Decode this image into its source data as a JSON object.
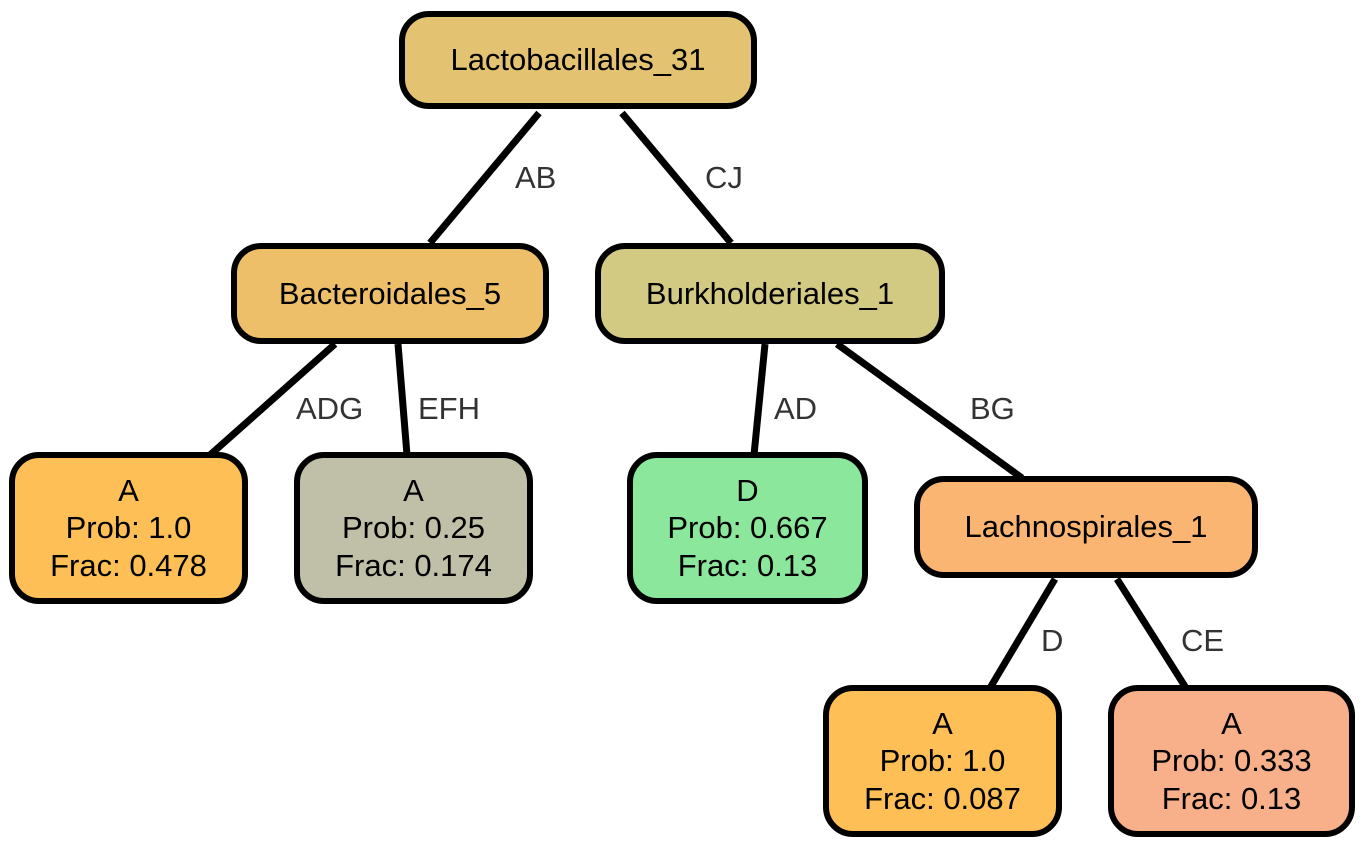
{
  "nodes": {
    "lactobacillales_31": {
      "label": "Lactobacillales_31",
      "color": "#E3C371"
    },
    "bacteroidales_5": {
      "label": "Bacteroidales_5",
      "color": "#EDBF69"
    },
    "burkholderiales_1": {
      "label": "Burkholderiales_1",
      "color": "#D2C983"
    },
    "leaf_a_1": {
      "label": "A",
      "prob": "Prob: 1.0",
      "frac": "Frac: 0.478",
      "color": "#FDBF56"
    },
    "leaf_a_2": {
      "label": "A",
      "prob": "Prob: 0.25",
      "frac": "Frac: 0.174",
      "color": "#C0BFA7"
    },
    "leaf_d": {
      "label": "D",
      "prob": "Prob: 0.667",
      "frac": "Frac: 0.13",
      "color": "#8BE79B"
    },
    "lachnospirales_1": {
      "label": "Lachnospirales_1",
      "color": "#FBB572"
    },
    "leaf_a_3": {
      "label": "A",
      "prob": "Prob: 1.0",
      "frac": "Frac: 0.087",
      "color": "#FDBF56"
    },
    "leaf_a_4": {
      "label": "A",
      "prob": "Prob: 0.333",
      "frac": "Frac: 0.13",
      "color": "#F7B089"
    }
  },
  "edges": {
    "ab": "AB",
    "cj": "CJ",
    "adg": "ADG",
    "efh": "EFH",
    "ad": "AD",
    "bg": "BG",
    "d": "D",
    "ce": "CE"
  }
}
